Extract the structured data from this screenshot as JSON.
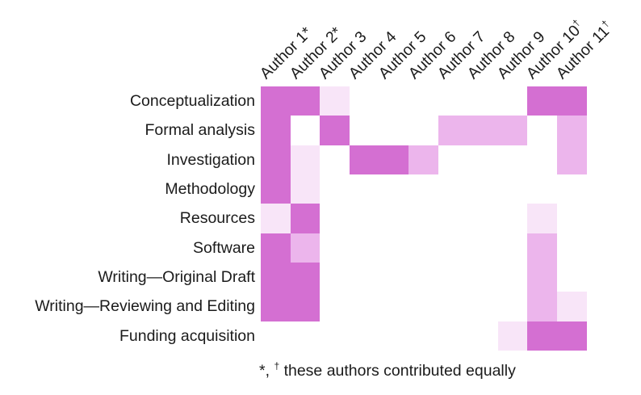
{
  "chart_data": {
    "type": "heatmap",
    "description": "Author contribution matrix (CRediT taxonomy); cell shade encodes contribution intensity",
    "rows": [
      "Conceptualization",
      "Formal analysis",
      "Investigation",
      "Methodology",
      "Resources",
      "Software",
      "Writing—Original Draft",
      "Writing—Reviewing and Editing",
      "Funding acquisition"
    ],
    "columns": [
      {
        "label": "Author 1",
        "suffix": "*",
        "suffix_sup": false
      },
      {
        "label": "Author 2",
        "suffix": "*",
        "suffix_sup": false
      },
      {
        "label": "Author 3",
        "suffix": "",
        "suffix_sup": false
      },
      {
        "label": "Author 4",
        "suffix": "",
        "suffix_sup": false
      },
      {
        "label": "Author 5",
        "suffix": "",
        "suffix_sup": false
      },
      {
        "label": "Author 6",
        "suffix": "",
        "suffix_sup": false
      },
      {
        "label": "Author 7",
        "suffix": "",
        "suffix_sup": false
      },
      {
        "label": "Author 8",
        "suffix": "",
        "suffix_sup": false
      },
      {
        "label": "Author 9",
        "suffix": "",
        "suffix_sup": false
      },
      {
        "label": "Author 10",
        "suffix": "†",
        "suffix_sup": true
      },
      {
        "label": "Author 11",
        "suffix": "†",
        "suffix_sup": true
      }
    ],
    "palette": {
      "0": "#ffffff",
      "1": "#f8e5f8",
      "2": "#ecb5ec",
      "3": "#d46fd2"
    },
    "matrix": [
      [
        3,
        3,
        1,
        0,
        0,
        0,
        0,
        0,
        0,
        3,
        3
      ],
      [
        3,
        0,
        3,
        0,
        0,
        0,
        2,
        2,
        2,
        0,
        2
      ],
      [
        3,
        1,
        0,
        3,
        3,
        2,
        0,
        0,
        0,
        0,
        2
      ],
      [
        3,
        1,
        0,
        0,
        0,
        0,
        0,
        0,
        0,
        0,
        0
      ],
      [
        1,
        3,
        0,
        0,
        0,
        0,
        0,
        0,
        0,
        1,
        0
      ],
      [
        3,
        2,
        0,
        0,
        0,
        0,
        0,
        0,
        0,
        2,
        0
      ],
      [
        3,
        3,
        0,
        0,
        0,
        0,
        0,
        0,
        0,
        2,
        0
      ],
      [
        3,
        3,
        0,
        0,
        0,
        0,
        0,
        0,
        0,
        2,
        1
      ],
      [
        0,
        0,
        0,
        0,
        0,
        0,
        0,
        0,
        1,
        3,
        3
      ]
    ],
    "grid": false,
    "legend_position": "none"
  },
  "footnote": {
    "asterisk": "*",
    "separator": ", ",
    "dagger": "†",
    "text": " these authors contributed equally"
  }
}
